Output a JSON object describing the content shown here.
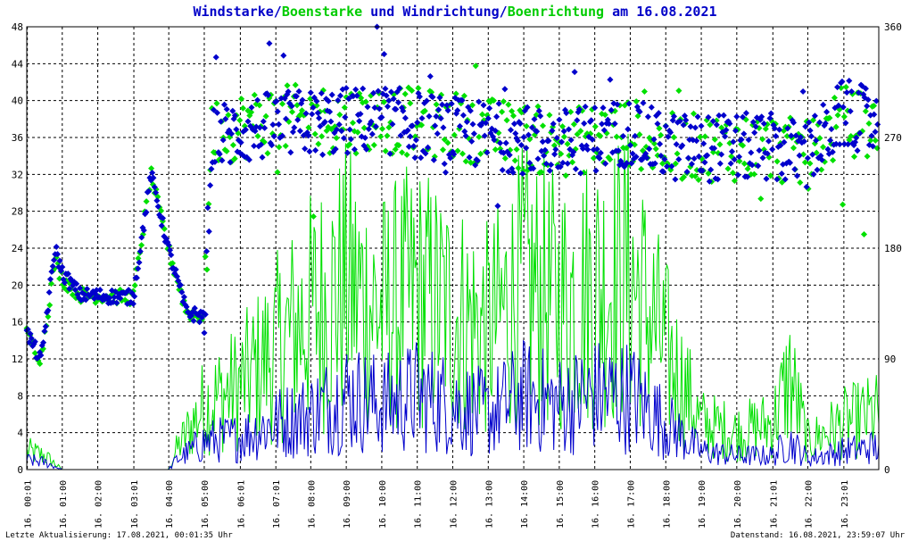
{
  "title": {
    "parts": [
      {
        "text": "Windstarke",
        "color": "#0000c8"
      },
      {
        "text": "/",
        "color": "#0000c8"
      },
      {
        "text": "Boenstarke",
        "color": "#00cc00"
      },
      {
        "text": " und ",
        "color": "#0000c8"
      },
      {
        "text": "Windrichtung",
        "color": "#0000c8"
      },
      {
        "text": "/",
        "color": "#0000c8"
      },
      {
        "text": "Boenrichtung",
        "color": "#00cc00"
      },
      {
        "text": " am 16.08.2021",
        "color": "#0000c8"
      }
    ]
  },
  "footer": {
    "left": "Letzte Aktualisierung: 17.08.2021, 00:01:35 Uhr",
    "right": "Datenstand: 16.08.2021, 23:59:07 Uhr"
  },
  "colors": {
    "wind": "#0000cc",
    "gust": "#00e000",
    "grid": "#000000"
  },
  "chart_data": {
    "type": "line",
    "x_ticks": [
      "16. 00:01",
      "16. 01:00",
      "16. 02:00",
      "16. 03:01",
      "16. 04:00",
      "16. 05:00",
      "16. 06:01",
      "16. 07:01",
      "16. 08:00",
      "16. 09:00",
      "16. 10:00",
      "16. 11:00",
      "16. 12:00",
      "16. 13:00",
      "16. 14:00",
      "16. 15:00",
      "16. 16:00",
      "16. 17:00",
      "16. 18:00",
      "16. 19:00",
      "16. 20:00",
      "16. 21:01",
      "16. 22:00",
      "16. 23:01"
    ],
    "y_left": {
      "range": [
        0,
        48
      ],
      "ticks": [
        "0",
        "4",
        "8",
        "12",
        "16",
        "20",
        "24",
        "28",
        "32",
        "36",
        "40",
        "44",
        "48"
      ]
    },
    "y_right": {
      "range": [
        0,
        360
      ],
      "ticks": [
        "0",
        "90",
        "180",
        "270",
        "360"
      ]
    },
    "xlim_hours": [
      0,
      24
    ],
    "grid": true,
    "series": [
      {
        "key": "windstarke",
        "axis": "left",
        "style": "line",
        "profile": [
          [
            0,
            1
          ],
          [
            0.5,
            0.8
          ],
          [
            1,
            0
          ],
          [
            4,
            0
          ],
          [
            4.2,
            1
          ],
          [
            5,
            3
          ],
          [
            6,
            3.5
          ],
          [
            7,
            5
          ],
          [
            8,
            6
          ],
          [
            9,
            8
          ],
          [
            10,
            7
          ],
          [
            11,
            8
          ],
          [
            12,
            7
          ],
          [
            13,
            6
          ],
          [
            14,
            8
          ],
          [
            15,
            7
          ],
          [
            16,
            8
          ],
          [
            17,
            8
          ],
          [
            18,
            5
          ],
          [
            19,
            2
          ],
          [
            20,
            1.5
          ],
          [
            21,
            1.5
          ],
          [
            21.5,
            3
          ],
          [
            22,
            1.2
          ],
          [
            23,
            2
          ],
          [
            24,
            2.5
          ]
        ]
      },
      {
        "key": "boenstarke",
        "axis": "left",
        "style": "line",
        "profile": [
          [
            0,
            2
          ],
          [
            0.5,
            1.5
          ],
          [
            1,
            0
          ],
          [
            4,
            0
          ],
          [
            4.2,
            2
          ],
          [
            5,
            7
          ],
          [
            6,
            9
          ],
          [
            7,
            13
          ],
          [
            8,
            17
          ],
          [
            9,
            20
          ],
          [
            10,
            17
          ],
          [
            11,
            19
          ],
          [
            12,
            17
          ],
          [
            13,
            15
          ],
          [
            14,
            20
          ],
          [
            15,
            18
          ],
          [
            16,
            20
          ],
          [
            17,
            21
          ],
          [
            18,
            13
          ],
          [
            19,
            5
          ],
          [
            20,
            4
          ],
          [
            21,
            5
          ],
          [
            21.5,
            10
          ],
          [
            22,
            3
          ],
          [
            23,
            5
          ],
          [
            24,
            6
          ]
        ]
      },
      {
        "key": "windrichtung",
        "axis": "right",
        "style": "points",
        "profile": [
          [
            0,
            112
          ],
          [
            0.4,
            88
          ],
          [
            0.8,
            180
          ],
          [
            1,
            160
          ],
          [
            1.5,
            142
          ],
          [
            3,
            140
          ],
          [
            3.5,
            240
          ],
          [
            4,
            178
          ],
          [
            4.5,
            128
          ],
          [
            5,
            124
          ],
          [
            5.2,
            270
          ],
          [
            7,
            280
          ],
          [
            10,
            285
          ],
          [
            12,
            275
          ],
          [
            15,
            265
          ],
          [
            17,
            275
          ],
          [
            18,
            262
          ],
          [
            20,
            262
          ],
          [
            21,
            262
          ],
          [
            22,
            255
          ],
          [
            23,
            290
          ],
          [
            24,
            280
          ]
        ]
      },
      {
        "key": "boenrichtung",
        "axis": "right",
        "style": "points",
        "profile": [
          [
            0,
            110
          ],
          [
            0.4,
            90
          ],
          [
            0.8,
            170
          ],
          [
            1,
            155
          ],
          [
            1.5,
            142
          ],
          [
            3,
            140
          ],
          [
            3.5,
            240
          ],
          [
            4,
            178
          ],
          [
            4.5,
            128
          ],
          [
            5,
            124
          ],
          [
            5.2,
            275
          ],
          [
            7,
            285
          ],
          [
            10,
            285
          ],
          [
            12,
            280
          ],
          [
            15,
            265
          ],
          [
            17,
            275
          ],
          [
            18,
            262
          ],
          [
            20,
            262
          ],
          [
            21,
            262
          ],
          [
            22,
            255
          ],
          [
            23,
            285
          ],
          [
            24,
            275
          ]
        ]
      }
    ]
  }
}
